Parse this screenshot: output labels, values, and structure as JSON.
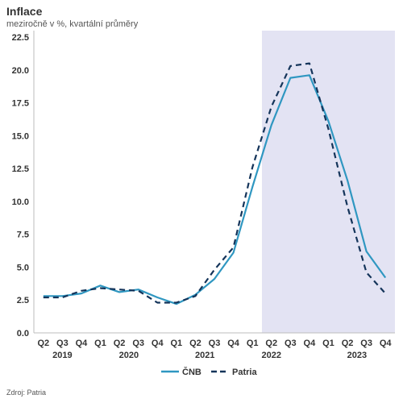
{
  "chart_data": {
    "type": "line",
    "title": "Inflace",
    "subtitle": "meziročně v %, kvartální průměry",
    "source": "Zdroj: Patria",
    "categories": [
      "Q2",
      "Q3",
      "Q4",
      "Q1",
      "Q2",
      "Q3",
      "Q4",
      "Q1",
      "Q2",
      "Q3",
      "Q4",
      "Q1",
      "Q2",
      "Q3",
      "Q4",
      "Q1",
      "Q2",
      "Q3",
      "Q4"
    ],
    "years": [
      {
        "label": "2019",
        "center_index": 1
      },
      {
        "label": "2020",
        "center_index": 4.5
      },
      {
        "label": "2021",
        "center_index": 8.5
      },
      {
        "label": "2022",
        "center_index": 12
      },
      {
        "label": "2023",
        "center_index": 16.5
      }
    ],
    "ylim": [
      0,
      22.5
    ],
    "yticks": [
      "0.0",
      "2.5",
      "5.0",
      "7.5",
      "10.0",
      "12.5",
      "15.0",
      "17.5",
      "20.0",
      "22.5"
    ],
    "forecast_shade_start_index": 11.5,
    "forecast_shade_color": "#e3e3f3",
    "series": [
      {
        "name": "ČNB",
        "color": "#2f97c1",
        "dash": false,
        "values": [
          2.8,
          2.8,
          3.0,
          3.6,
          3.1,
          3.3,
          2.7,
          2.2,
          2.9,
          4.1,
          6.1,
          11.1,
          15.8,
          19.4,
          19.6,
          16.1,
          11.6,
          6.2,
          4.2
        ]
      },
      {
        "name": "Patria",
        "color": "#14345a",
        "dash": true,
        "values": [
          2.7,
          2.7,
          3.2,
          3.4,
          3.3,
          3.2,
          2.3,
          2.3,
          2.8,
          4.8,
          6.5,
          12.6,
          17.2,
          20.3,
          20.5,
          15.5,
          9.6,
          4.6,
          3.0
        ]
      }
    ],
    "legend": [
      "ČNB",
      "Patria"
    ],
    "legend_placement": "bottom-center"
  }
}
